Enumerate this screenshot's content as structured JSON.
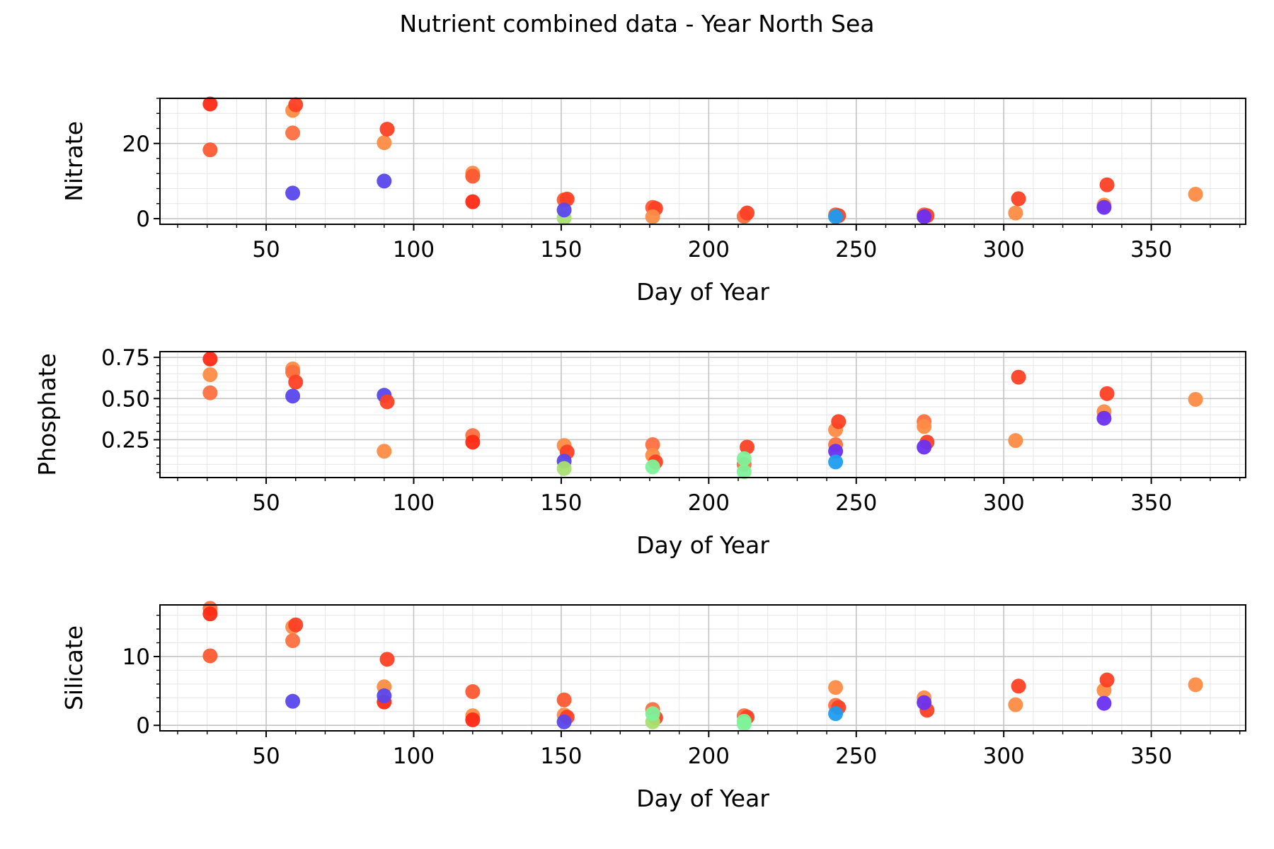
{
  "title": "Nutrient combined data - Year North Sea",
  "chart_data": [
    {
      "type": "scatter",
      "xlabel": "Day of Year",
      "ylabel": "Nitrate",
      "xlim": [
        14,
        382
      ],
      "ylim": [
        -1.5,
        32
      ],
      "xticks": [
        50,
        100,
        150,
        200,
        250,
        300,
        350
      ],
      "yticks": [
        0,
        20
      ],
      "grid": true,
      "points": [
        {
          "x": 31,
          "y": 30.5,
          "color": "#fe2a14"
        },
        {
          "x": 31,
          "y": 18.3,
          "color": "#fe5a32"
        },
        {
          "x": 59,
          "y": 28.8,
          "color": "#fd8c45"
        },
        {
          "x": 59,
          "y": 22.8,
          "color": "#fd7040"
        },
        {
          "x": 60,
          "y": 30.3,
          "color": "#fe4024"
        },
        {
          "x": 59,
          "y": 6.8,
          "color": "#5a47ec"
        },
        {
          "x": 90,
          "y": 20.2,
          "color": "#fd8c45"
        },
        {
          "x": 91,
          "y": 23.8,
          "color": "#fe4024"
        },
        {
          "x": 90,
          "y": 10.0,
          "color": "#5a47ec"
        },
        {
          "x": 120,
          "y": 12.1,
          "color": "#fd8c45"
        },
        {
          "x": 120,
          "y": 11.3,
          "color": "#fe5a32"
        },
        {
          "x": 120,
          "y": 4.5,
          "color": "#fe2a14"
        },
        {
          "x": 151,
          "y": 5.0,
          "color": "#fe5a32"
        },
        {
          "x": 152,
          "y": 5.2,
          "color": "#fe4024"
        },
        {
          "x": 151,
          "y": 0.2,
          "color": "#a8e070"
        },
        {
          "x": 151,
          "y": 2.3,
          "color": "#5a47ec"
        },
        {
          "x": 181,
          "y": 3.0,
          "color": "#fe5a32"
        },
        {
          "x": 182,
          "y": 2.7,
          "color": "#fe4024"
        },
        {
          "x": 181,
          "y": 0.5,
          "color": "#fd8c45"
        },
        {
          "x": 212,
          "y": 0.6,
          "color": "#fd7040"
        },
        {
          "x": 213,
          "y": 1.5,
          "color": "#fe4024"
        },
        {
          "x": 243,
          "y": 1.0,
          "color": "#fe5a32"
        },
        {
          "x": 244,
          "y": 0.8,
          "color": "#fe4024"
        },
        {
          "x": 243,
          "y": 0.5,
          "color": "#1c9df0"
        },
        {
          "x": 273,
          "y": 1.0,
          "color": "#fe5a32"
        },
        {
          "x": 274,
          "y": 0.8,
          "color": "#fe4024"
        },
        {
          "x": 273,
          "y": 0.5,
          "color": "#6a30f0"
        },
        {
          "x": 304,
          "y": 1.5,
          "color": "#fd8c45"
        },
        {
          "x": 305,
          "y": 5.3,
          "color": "#fe4024"
        },
        {
          "x": 334,
          "y": 3.6,
          "color": "#fd8c45"
        },
        {
          "x": 335,
          "y": 9.0,
          "color": "#fe4024"
        },
        {
          "x": 334,
          "y": 3.0,
          "color": "#6a30f0"
        },
        {
          "x": 365,
          "y": 6.5,
          "color": "#fd8c45"
        }
      ]
    },
    {
      "type": "scatter",
      "xlabel": "Day of Year",
      "ylabel": "Phosphate",
      "xlim": [
        14,
        382
      ],
      "ylim": [
        0.02,
        0.785
      ],
      "xticks": [
        50,
        100,
        150,
        200,
        250,
        300,
        350
      ],
      "yticks": [
        0.25,
        0.5,
        0.75
      ],
      "yticklabels": [
        "0.25",
        "0.50",
        "0.75"
      ],
      "grid": true,
      "points": [
        {
          "x": 31,
          "y": 0.74,
          "color": "#fe2a14"
        },
        {
          "x": 31,
          "y": 0.645,
          "color": "#fd8c45"
        },
        {
          "x": 31,
          "y": 0.535,
          "color": "#fd7040"
        },
        {
          "x": 59,
          "y": 0.68,
          "color": "#fd8c45"
        },
        {
          "x": 59,
          "y": 0.66,
          "color": "#fd7040"
        },
        {
          "x": 60,
          "y": 0.6,
          "color": "#fe4024"
        },
        {
          "x": 59,
          "y": 0.515,
          "color": "#5a47ec"
        },
        {
          "x": 90,
          "y": 0.52,
          "color": "#5a47ec"
        },
        {
          "x": 91,
          "y": 0.48,
          "color": "#fe4024"
        },
        {
          "x": 90,
          "y": 0.18,
          "color": "#fd8c45"
        },
        {
          "x": 120,
          "y": 0.275,
          "color": "#fd7040"
        },
        {
          "x": 120,
          "y": 0.235,
          "color": "#fe2a14"
        },
        {
          "x": 151,
          "y": 0.215,
          "color": "#fd8c45"
        },
        {
          "x": 152,
          "y": 0.175,
          "color": "#fe4024"
        },
        {
          "x": 151,
          "y": 0.12,
          "color": "#5a47ec"
        },
        {
          "x": 151,
          "y": 0.075,
          "color": "#a8e070"
        },
        {
          "x": 181,
          "y": 0.22,
          "color": "#fd7040"
        },
        {
          "x": 181,
          "y": 0.155,
          "color": "#fd8c45"
        },
        {
          "x": 182,
          "y": 0.115,
          "color": "#fe4024"
        },
        {
          "x": 181,
          "y": 0.085,
          "color": "#7ef29a"
        },
        {
          "x": 212,
          "y": 0.1,
          "color": "#fd7040"
        },
        {
          "x": 213,
          "y": 0.205,
          "color": "#fe4024"
        },
        {
          "x": 212,
          "y": 0.135,
          "color": "#7ef29a"
        },
        {
          "x": 212,
          "y": 0.055,
          "color": "#7ef29a"
        },
        {
          "x": 243,
          "y": 0.31,
          "color": "#fd8c45"
        },
        {
          "x": 244,
          "y": 0.36,
          "color": "#fe4024"
        },
        {
          "x": 243,
          "y": 0.22,
          "color": "#fd7040"
        },
        {
          "x": 243,
          "y": 0.18,
          "color": "#6a30f0"
        },
        {
          "x": 243,
          "y": 0.115,
          "color": "#1c9df0"
        },
        {
          "x": 273,
          "y": 0.36,
          "color": "#fd7040"
        },
        {
          "x": 273,
          "y": 0.33,
          "color": "#fd8c45"
        },
        {
          "x": 274,
          "y": 0.235,
          "color": "#fe4024"
        },
        {
          "x": 273,
          "y": 0.205,
          "color": "#6a30f0"
        },
        {
          "x": 304,
          "y": 0.245,
          "color": "#fd8c45"
        },
        {
          "x": 305,
          "y": 0.63,
          "color": "#fe4024"
        },
        {
          "x": 335,
          "y": 0.53,
          "color": "#fe4024"
        },
        {
          "x": 334,
          "y": 0.42,
          "color": "#fd8c45"
        },
        {
          "x": 334,
          "y": 0.38,
          "color": "#6a30f0"
        },
        {
          "x": 365,
          "y": 0.495,
          "color": "#fd8c45"
        }
      ]
    },
    {
      "type": "scatter",
      "xlabel": "Day of Year",
      "ylabel": "Silicate",
      "xlim": [
        14,
        382
      ],
      "ylim": [
        -0.8,
        17.5
      ],
      "xticks": [
        50,
        100,
        150,
        200,
        250,
        300,
        350
      ],
      "yticks": [
        0,
        10
      ],
      "grid": true,
      "points": [
        {
          "x": 31,
          "y": 17.0,
          "color": "#fd7040"
        },
        {
          "x": 31,
          "y": 16.2,
          "color": "#fe2a14"
        },
        {
          "x": 31,
          "y": 10.1,
          "color": "#fe5a32"
        },
        {
          "x": 59,
          "y": 14.3,
          "color": "#fd8c45"
        },
        {
          "x": 60,
          "y": 14.6,
          "color": "#fe4024"
        },
        {
          "x": 59,
          "y": 12.3,
          "color": "#fd7040"
        },
        {
          "x": 59,
          "y": 3.5,
          "color": "#5a47ec"
        },
        {
          "x": 90,
          "y": 5.6,
          "color": "#fd8c45"
        },
        {
          "x": 91,
          "y": 9.6,
          "color": "#fe4024"
        },
        {
          "x": 90,
          "y": 3.4,
          "color": "#fe2a14"
        },
        {
          "x": 90,
          "y": 4.3,
          "color": "#5a47ec"
        },
        {
          "x": 120,
          "y": 4.9,
          "color": "#fe5a32"
        },
        {
          "x": 120,
          "y": 1.4,
          "color": "#fd8c45"
        },
        {
          "x": 120,
          "y": 0.8,
          "color": "#fe2a14"
        },
        {
          "x": 151,
          "y": 3.7,
          "color": "#fe5a32"
        },
        {
          "x": 151,
          "y": 1.5,
          "color": "#fd8c45"
        },
        {
          "x": 152,
          "y": 1.2,
          "color": "#fe4024"
        },
        {
          "x": 151,
          "y": 0.5,
          "color": "#5a47ec"
        },
        {
          "x": 181,
          "y": 2.3,
          "color": "#fd7040"
        },
        {
          "x": 182,
          "y": 1.1,
          "color": "#fe4024"
        },
        {
          "x": 181,
          "y": 0.5,
          "color": "#a8e070"
        },
        {
          "x": 181,
          "y": 1.7,
          "color": "#7ef29a"
        },
        {
          "x": 212,
          "y": 1.4,
          "color": "#fd7040"
        },
        {
          "x": 213,
          "y": 1.2,
          "color": "#fe4024"
        },
        {
          "x": 212,
          "y": 0.6,
          "color": "#7ef29a"
        },
        {
          "x": 212,
          "y": 0.2,
          "color": "#7ef29a"
        },
        {
          "x": 243,
          "y": 5.5,
          "color": "#fd8c45"
        },
        {
          "x": 243,
          "y": 2.9,
          "color": "#fd7040"
        },
        {
          "x": 244,
          "y": 2.6,
          "color": "#fe4024"
        },
        {
          "x": 243,
          "y": 1.7,
          "color": "#1c9df0"
        },
        {
          "x": 273,
          "y": 4.0,
          "color": "#fd8c45"
        },
        {
          "x": 274,
          "y": 2.2,
          "color": "#fe4024"
        },
        {
          "x": 273,
          "y": 3.3,
          "color": "#6a30f0"
        },
        {
          "x": 304,
          "y": 3.0,
          "color": "#fd8c45"
        },
        {
          "x": 305,
          "y": 5.7,
          "color": "#fe4024"
        },
        {
          "x": 334,
          "y": 5.1,
          "color": "#fd8c45"
        },
        {
          "x": 335,
          "y": 6.6,
          "color": "#fe4024"
        },
        {
          "x": 334,
          "y": 3.2,
          "color": "#6a30f0"
        },
        {
          "x": 365,
          "y": 5.9,
          "color": "#fd8c45"
        }
      ]
    }
  ]
}
